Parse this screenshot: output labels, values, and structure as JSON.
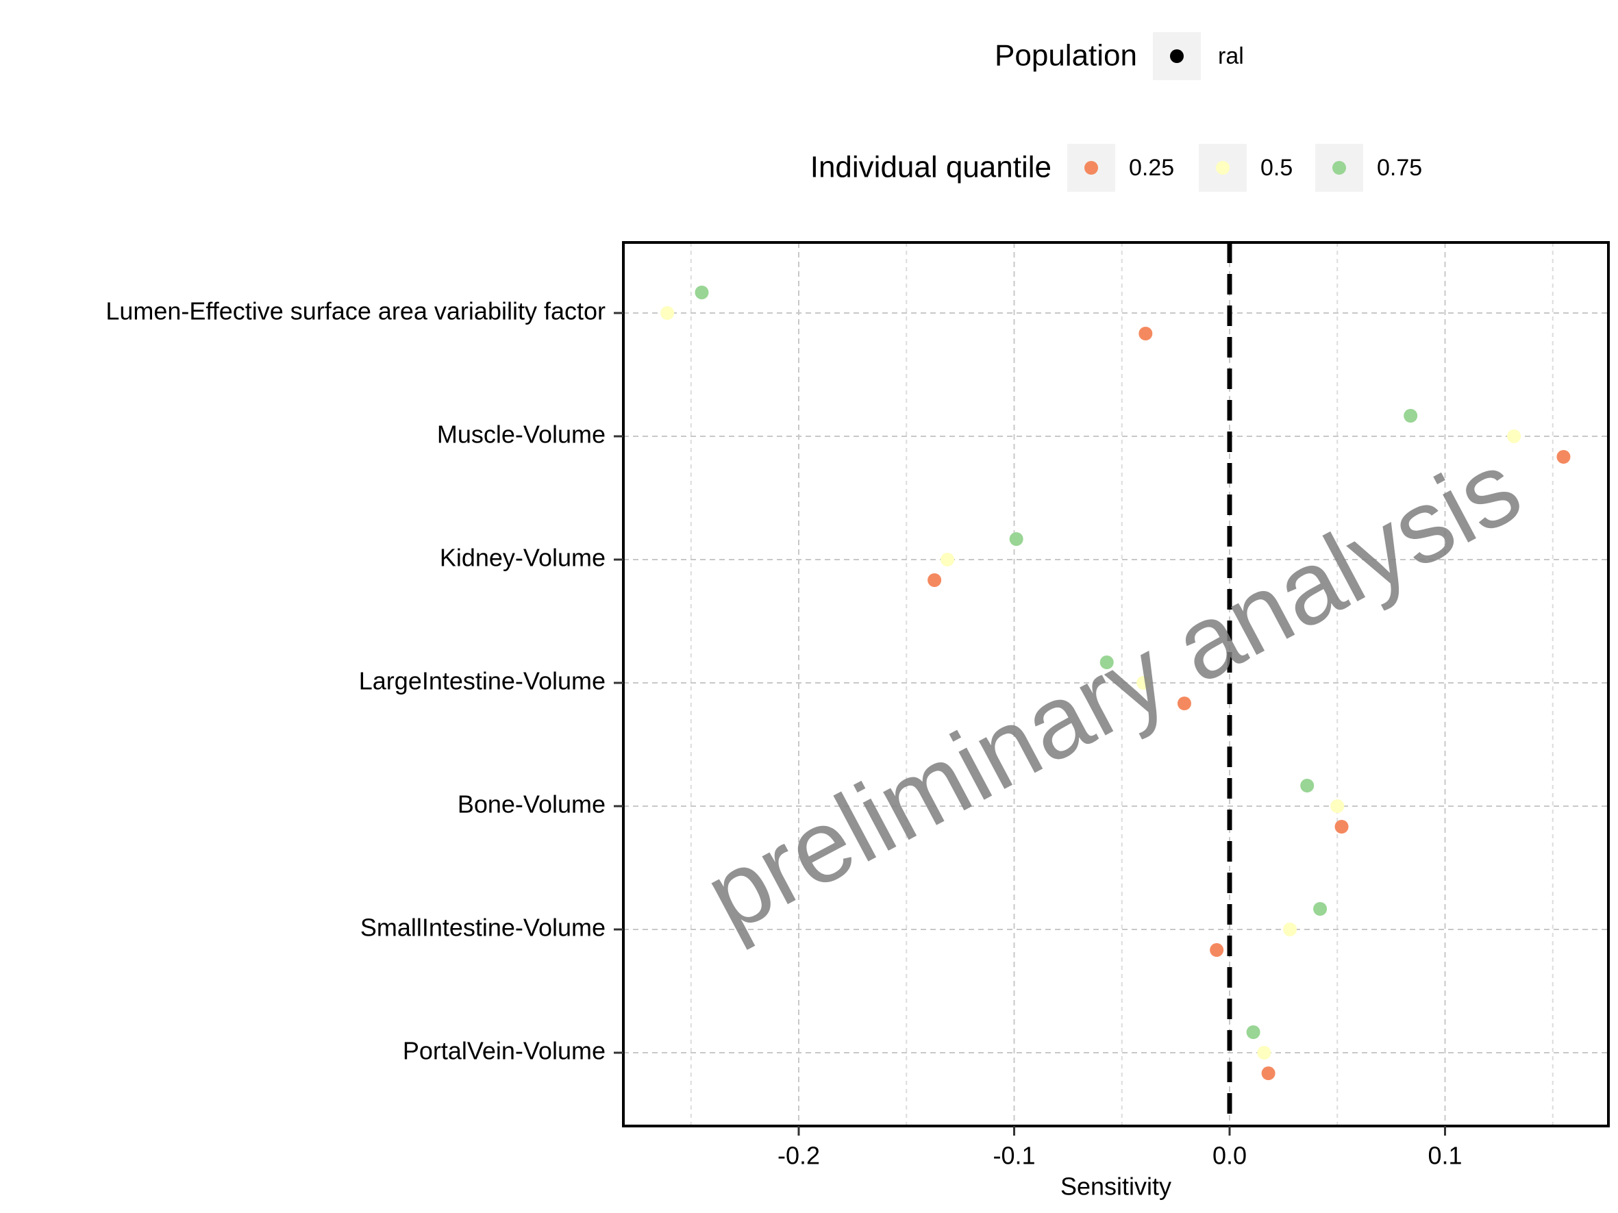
{
  "chart_data": {
    "type": "scatter",
    "title": "",
    "xlabel": "Sensitivity",
    "ylabel": "",
    "xlim": [
      -0.28,
      0.177
    ],
    "x_ticks": [
      -0.2,
      -0.1,
      0.0,
      0.1
    ],
    "x_tick_labels": [
      "-0.2",
      "-0.1",
      "0.0",
      "0.1"
    ],
    "categories": [
      "Lumen-Effective surface area variability factor",
      "Muscle-Volume",
      "Kidney-Volume",
      "LargeIntestine-Volume",
      "Bone-Volume",
      "SmallIntestine-Volume",
      "PortalVein-Volume"
    ],
    "series": [
      {
        "name": "0.25",
        "color": "#F4895F",
        "values": [
          -0.039,
          0.155,
          -0.137,
          -0.021,
          0.052,
          -0.006,
          0.018
        ]
      },
      {
        "name": "0.5",
        "color": "#FFFFBF",
        "values": [
          -0.261,
          0.132,
          -0.131,
          -0.04,
          0.05,
          0.028,
          0.016
        ]
      },
      {
        "name": "0.75",
        "color": "#99D594",
        "values": [
          -0.245,
          0.084,
          -0.099,
          -0.057,
          0.036,
          0.042,
          0.011
        ]
      }
    ],
    "reference_line": {
      "x": 0.0,
      "style": "dashed",
      "color": "#000000"
    },
    "grid": true,
    "legend_position": "top",
    "legends": {
      "population": {
        "title": "Population",
        "entries": [
          {
            "label": "ral",
            "color": "#000000"
          }
        ]
      },
      "quantile": {
        "title": "Individual quantile",
        "entries": [
          {
            "label": "0.25",
            "color": "#F4895F"
          },
          {
            "label": "0.5",
            "color": "#FFFFBF"
          },
          {
            "label": "0.75",
            "color": "#99D594"
          }
        ]
      }
    },
    "watermark": "preliminary analysis"
  }
}
